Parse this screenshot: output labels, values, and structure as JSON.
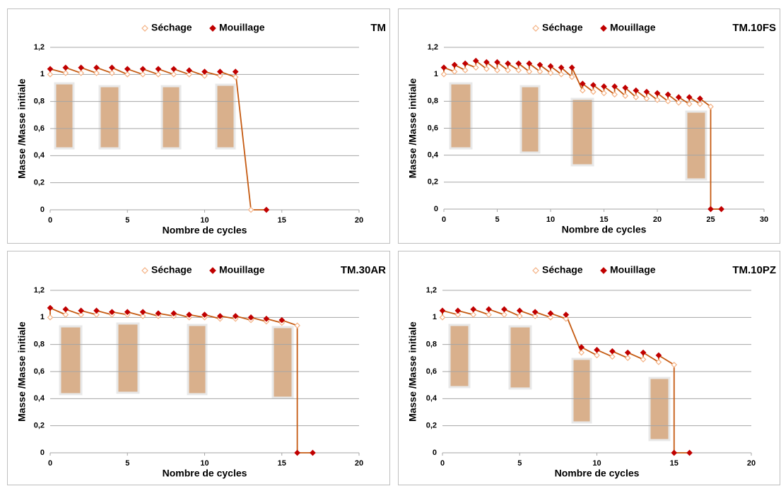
{
  "chart_data": [
    {
      "type": "line",
      "title": "TM",
      "xlabel": "Nombre de cycles",
      "ylabel": "Masse /Masse initiale",
      "xlim": [
        0,
        20
      ],
      "xticks": [
        0,
        5,
        10,
        15,
        20
      ],
      "ylim": [
        0,
        1.2
      ],
      "yticks": [
        0,
        {
          "value": 0.2,
          "label": "0,2"
        },
        {
          "value": 0.4,
          "label": "0,4"
        },
        {
          "value": 0.6,
          "label": "0,6"
        },
        {
          "value": 0.8,
          "label": "0,8"
        },
        1,
        {
          "value": 1.2,
          "label": "1,2"
        }
      ],
      "grid": true,
      "series": [
        {
          "name": "Séchage",
          "color": "#f4b183",
          "x": [
            0,
            1,
            2,
            3,
            4,
            5,
            6,
            7,
            8,
            9,
            10,
            11,
            12,
            13
          ],
          "values": [
            1.0,
            1.01,
            1.01,
            1.01,
            1.01,
            1.0,
            1.0,
            1.0,
            1.0,
            1.0,
            0.99,
            0.99,
            0.98,
            0
          ]
        },
        {
          "name": "Mouillage",
          "color": "#c00000",
          "x": [
            0,
            1,
            2,
            3,
            4,
            5,
            6,
            7,
            8,
            9,
            10,
            11,
            12,
            14
          ],
          "values": [
            1.04,
            1.05,
            1.05,
            1.05,
            1.05,
            1.04,
            1.04,
            1.04,
            1.04,
            1.03,
            1.02,
            1.02,
            1.02,
            0
          ]
        }
      ]
    },
    {
      "type": "line",
      "title": "TM.10FS",
      "xlabel": "Nombre de cycles",
      "ylabel": "Masse /Masse initiale",
      "xlim": [
        0,
        30
      ],
      "xticks": [
        0,
        5,
        10,
        15,
        20,
        25,
        30
      ],
      "ylim": [
        0,
        1.2
      ],
      "yticks": [
        0,
        {
          "value": 0.2,
          "label": "0,2"
        },
        {
          "value": 0.4,
          "label": "0,4"
        },
        {
          "value": 0.6,
          "label": "0,6"
        },
        {
          "value": 0.8,
          "label": "0,8"
        },
        1,
        {
          "value": 1.2,
          "label": "1,2"
        }
      ],
      "grid": true,
      "series": [
        {
          "name": "Séchage",
          "color": "#f4b183",
          "x": [
            0,
            1,
            2,
            3,
            4,
            5,
            6,
            7,
            8,
            9,
            10,
            11,
            12,
            13,
            14,
            15,
            16,
            17,
            18,
            19,
            20,
            21,
            22,
            23,
            24,
            25
          ],
          "values": [
            1.0,
            1.02,
            1.03,
            1.05,
            1.04,
            1.03,
            1.03,
            1.03,
            1.02,
            1.02,
            1.01,
            1.0,
            0.98,
            0.88,
            0.87,
            0.86,
            0.85,
            0.84,
            0.83,
            0.82,
            0.81,
            0.8,
            0.79,
            0.78,
            0.78,
            0.76
          ]
        },
        {
          "name": "Mouillage",
          "color": "#c00000",
          "x": [
            0,
            1,
            2,
            3,
            4,
            5,
            6,
            7,
            8,
            9,
            10,
            11,
            12,
            13,
            14,
            15,
            16,
            17,
            18,
            19,
            20,
            21,
            22,
            23,
            24,
            25,
            26
          ],
          "values": [
            1.05,
            1.07,
            1.08,
            1.1,
            1.09,
            1.09,
            1.08,
            1.08,
            1.08,
            1.07,
            1.06,
            1.05,
            1.05,
            0.93,
            0.92,
            0.91,
            0.91,
            0.9,
            0.88,
            0.87,
            0.86,
            0.85,
            0.83,
            0.83,
            0.82,
            0,
            0
          ]
        }
      ]
    },
    {
      "type": "line",
      "title": "TM.30AR",
      "xlabel": "Nombre de cycles",
      "ylabel": "Masse /Masse initiale",
      "xlim": [
        0,
        20
      ],
      "xticks": [
        0,
        5,
        10,
        15,
        20
      ],
      "ylim": [
        0,
        1.2
      ],
      "yticks": [
        0,
        {
          "value": 0.2,
          "label": "0,2"
        },
        {
          "value": 0.4,
          "label": "0,4"
        },
        {
          "value": 0.6,
          "label": "0,6"
        },
        {
          "value": 0.8,
          "label": "0,8"
        },
        1,
        {
          "value": 1.2,
          "label": "1,2"
        }
      ],
      "grid": true,
      "series": [
        {
          "name": "Séchage",
          "color": "#f4b183",
          "x": [
            0,
            1,
            2,
            3,
            4,
            5,
            6,
            7,
            8,
            9,
            10,
            11,
            12,
            13,
            14,
            15,
            16
          ],
          "values": [
            1.0,
            1.02,
            1.02,
            1.02,
            1.02,
            1.02,
            1.01,
            1.01,
            1.01,
            1.0,
            1.0,
            0.99,
            0.99,
            0.98,
            0.97,
            0.96,
            0.94
          ]
        },
        {
          "name": "Mouillage",
          "color": "#c00000",
          "x": [
            0,
            1,
            2,
            3,
            4,
            5,
            6,
            7,
            8,
            9,
            10,
            11,
            12,
            13,
            14,
            15,
            16,
            17
          ],
          "values": [
            1.07,
            1.06,
            1.05,
            1.05,
            1.04,
            1.04,
            1.04,
            1.03,
            1.03,
            1.02,
            1.02,
            1.01,
            1.01,
            1.0,
            0.99,
            0.98,
            0,
            0
          ]
        }
      ]
    },
    {
      "type": "line",
      "title": "TM.10PZ",
      "xlabel": "Nombre de cycles",
      "ylabel": "Masse /Masse initiale",
      "xlim": [
        0,
        20
      ],
      "xticks": [
        0,
        5,
        10,
        15,
        20
      ],
      "ylim": [
        0,
        1.2
      ],
      "yticks": [
        0,
        {
          "value": 0.2,
          "label": "0,2"
        },
        {
          "value": 0.4,
          "label": "0,4"
        },
        {
          "value": 0.6,
          "label": "0,6"
        },
        {
          "value": 0.8,
          "label": "0,8"
        },
        1,
        {
          "value": 1.2,
          "label": "1,2"
        }
      ],
      "grid": true,
      "series": [
        {
          "name": "Séchage",
          "color": "#f4b183",
          "x": [
            0,
            1,
            2,
            3,
            4,
            5,
            6,
            7,
            8,
            9,
            10,
            11,
            12,
            13,
            14,
            15
          ],
          "values": [
            1.0,
            1.02,
            1.02,
            1.02,
            1.02,
            1.01,
            1.01,
            1.0,
            0.99,
            0.74,
            0.72,
            0.71,
            0.7,
            0.69,
            0.67,
            0.65
          ]
        },
        {
          "name": "Mouillage",
          "color": "#c00000",
          "x": [
            0,
            1,
            2,
            3,
            4,
            5,
            6,
            7,
            8,
            9,
            10,
            11,
            12,
            13,
            14,
            15,
            16
          ],
          "values": [
            1.05,
            1.05,
            1.06,
            1.06,
            1.06,
            1.05,
            1.04,
            1.03,
            1.02,
            0.78,
            0.76,
            0.75,
            0.74,
            0.74,
            0.72,
            0,
            0
          ]
        }
      ]
    }
  ]
}
